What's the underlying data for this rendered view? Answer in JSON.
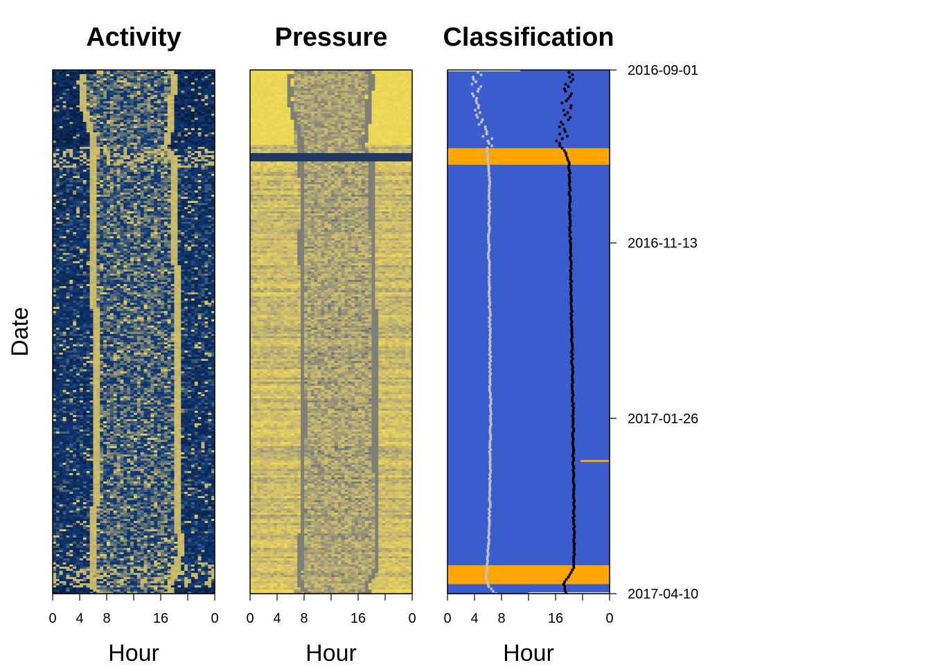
{
  "chart_data": [
    {
      "type": "heatmap",
      "title": "Activity",
      "xlabel": "Hour",
      "ylabel": "Date",
      "x_ticks": [
        "0",
        "4",
        "8",
        "",
        "16",
        "",
        "0"
      ],
      "colorscale": [
        "#0a1a3a",
        "#0e3a78",
        "#c0b270",
        "#f0dc50"
      ]
    },
    {
      "type": "heatmap",
      "title": "Pressure",
      "xlabel": "Hour",
      "x_ticks": [
        "0",
        "4",
        "8",
        "",
        "16",
        "",
        "0"
      ],
      "colorscale": [
        "#0e2a60",
        "#8a8a78",
        "#c8b870",
        "#f2dc50"
      ]
    },
    {
      "type": "heatmap",
      "title": "Classification",
      "xlabel": "Hour",
      "x_ticks": [
        "0",
        "4",
        "8",
        "",
        "16",
        "",
        "0"
      ],
      "y_ticks": [
        "2016-09-01",
        "2016-11-13",
        "2017-01-26",
        "2017-04-10"
      ],
      "ylim": [
        "2016-09-01",
        "2017-04-10"
      ],
      "classes": [
        {
          "color": "#3a5ccc"
        },
        {
          "color": "#ffa500"
        }
      ],
      "orange_bands": [
        {
          "start": "2016-10-04",
          "end": "2016-10-11"
        },
        {
          "start": "2017-03-29",
          "end": "2017-04-06"
        }
      ],
      "orange_segments": [
        {
          "date": "2017-02-13",
          "hour_start": 19.7,
          "hour_end": 24
        }
      ],
      "series": [
        {
          "color": "#c0c0c0",
          "points": [
            [
              "2016-09-02",
              4.5
            ],
            [
              "2016-09-06",
              4.2
            ],
            [
              "2016-09-10",
              4.5
            ],
            [
              "2016-09-13",
              4.3
            ],
            [
              "2016-09-16",
              4.6
            ],
            [
              "2016-09-19",
              4.8
            ],
            [
              "2016-09-22",
              5.2
            ],
            [
              "2016-09-25",
              5.6
            ],
            [
              "2016-09-28",
              5.8
            ],
            [
              "2016-10-01",
              6.0
            ],
            [
              "2016-10-04",
              5.9
            ],
            [
              "2016-10-07",
              6.0
            ],
            [
              "2016-10-12",
              6.1
            ],
            [
              "2016-10-20",
              6.2
            ],
            [
              "2016-11-01",
              6.2
            ],
            [
              "2016-11-13",
              6.1
            ],
            [
              "2016-12-01",
              6.2
            ],
            [
              "2016-12-20",
              6.3
            ],
            [
              "2017-01-10",
              6.3
            ],
            [
              "2017-01-26",
              6.4
            ],
            [
              "2017-02-10",
              6.3
            ],
            [
              "2017-02-25",
              6.3
            ],
            [
              "2017-03-10",
              6.2
            ],
            [
              "2017-03-20",
              6.1
            ],
            [
              "2017-03-30",
              5.9
            ],
            [
              "2017-04-03",
              5.7
            ],
            [
              "2017-04-07",
              6.1
            ],
            [
              "2017-04-10",
              7.2
            ]
          ]
        },
        {
          "color": "#000000",
          "points": [
            [
              "2016-09-02",
              18.0
            ],
            [
              "2016-09-08",
              17.9
            ],
            [
              "2016-09-14",
              17.6
            ],
            [
              "2016-09-20",
              17.4
            ],
            [
              "2016-09-26",
              17.3
            ],
            [
              "2016-09-30",
              17.0
            ],
            [
              "2016-10-03",
              16.6
            ],
            [
              "2016-10-06",
              17.5
            ],
            [
              "2016-10-10",
              18.0
            ],
            [
              "2016-10-18",
              18.1
            ],
            [
              "2016-11-01",
              18.1
            ],
            [
              "2016-11-13",
              18.2
            ],
            [
              "2016-12-01",
              18.3
            ],
            [
              "2016-12-20",
              18.4
            ],
            [
              "2017-01-10",
              18.5
            ],
            [
              "2017-01-26",
              18.6
            ],
            [
              "2017-02-10",
              18.6
            ],
            [
              "2017-02-25",
              18.7
            ],
            [
              "2017-03-10",
              18.7
            ],
            [
              "2017-03-20",
              18.8
            ],
            [
              "2017-03-30",
              18.7
            ],
            [
              "2017-04-03",
              17.9
            ],
            [
              "2017-04-06",
              17.2
            ],
            [
              "2017-04-10",
              17.6
            ]
          ]
        }
      ]
    }
  ]
}
